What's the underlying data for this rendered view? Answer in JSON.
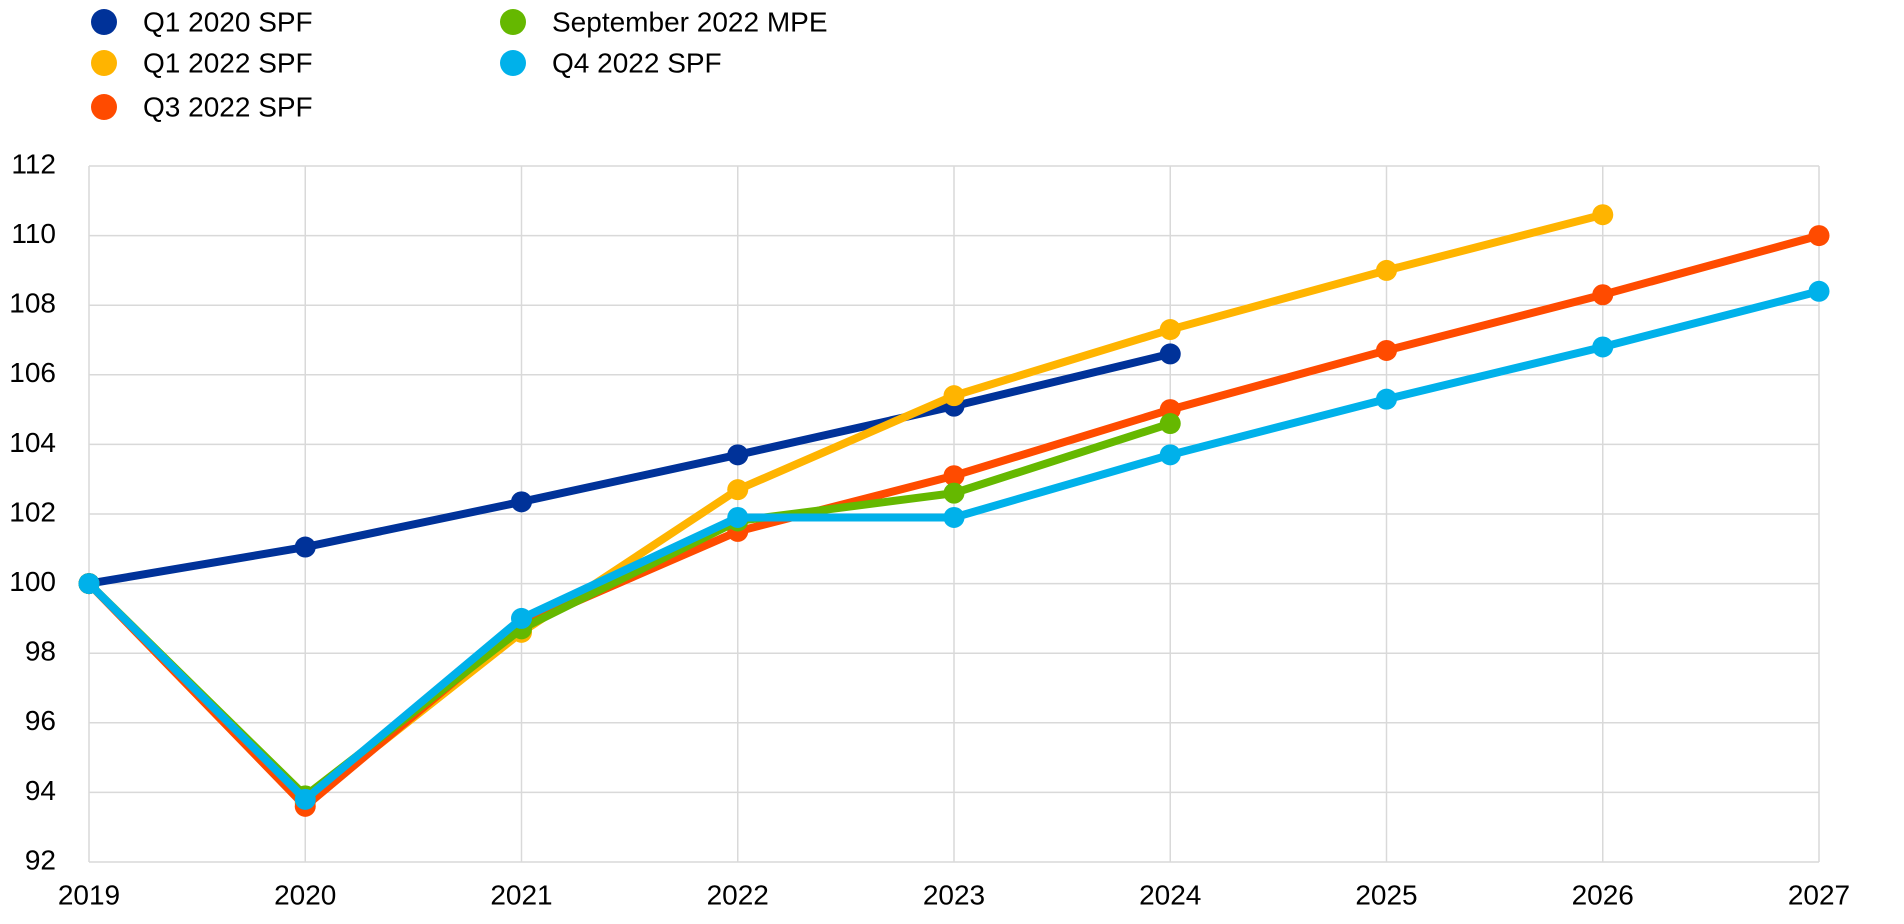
{
  "chart_data": {
    "type": "line",
    "x": [
      2019,
      2020,
      2021,
      2022,
      2023,
      2024,
      2025,
      2026,
      2027
    ],
    "xlim": [
      2019,
      2027
    ],
    "xticks": [
      2019,
      2020,
      2021,
      2022,
      2023,
      2024,
      2025,
      2026,
      2027
    ],
    "ylim": [
      92,
      112
    ],
    "yticks": [
      92,
      94,
      96,
      98,
      100,
      102,
      104,
      106,
      108,
      110,
      112
    ],
    "grid": true,
    "legend": "top-left",
    "series": [
      {
        "name": "Q1 2020 SPF",
        "color": "#003299",
        "values": [
          100,
          101.05,
          102.35,
          103.7,
          105.1,
          106.6,
          null,
          null,
          null
        ]
      },
      {
        "name": "Q1 2022 SPF",
        "color": "#ffb400",
        "values": [
          100,
          93.7,
          98.6,
          102.7,
          105.4,
          107.3,
          109.0,
          110.6,
          null
        ]
      },
      {
        "name": "Q3 2022 SPF",
        "color": "#ff4b00",
        "values": [
          100,
          93.6,
          98.8,
          101.5,
          103.1,
          105.0,
          106.7,
          108.3,
          110.0
        ]
      },
      {
        "name": "September 2022 MPE",
        "color": "#65b800",
        "values": [
          100,
          93.9,
          98.7,
          101.8,
          102.6,
          104.6,
          null,
          null,
          null
        ]
      },
      {
        "name": "Q4 2022 SPF",
        "color": "#00b1ea",
        "values": [
          100,
          93.8,
          99.0,
          101.9,
          101.9,
          103.7,
          105.3,
          106.8,
          108.4
        ]
      }
    ]
  }
}
